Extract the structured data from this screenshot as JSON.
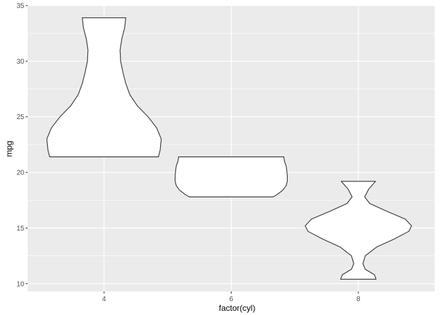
{
  "chart_data": {
    "type": "violin",
    "title": "",
    "xlabel": "factor(cyl)",
    "ylabel": "mpg",
    "ylim": [
      9.3,
      35
    ],
    "categories": [
      "4",
      "6",
      "8"
    ],
    "y_ticks": [
      10,
      15,
      20,
      25,
      30,
      35
    ],
    "grid": true,
    "panel_background": "#ebebeb",
    "grid_color": "#ffffff",
    "violin_fill": "#ffffff",
    "violin_stroke": "#333333",
    "violins": [
      {
        "category": "4",
        "min": 21.4,
        "max": 33.9,
        "density": [
          [
            21.4,
            0.95
          ],
          [
            22.0,
            0.98
          ],
          [
            23.0,
            1.0
          ],
          [
            24.0,
            0.92
          ],
          [
            25.0,
            0.77
          ],
          [
            26.0,
            0.58
          ],
          [
            27.0,
            0.45
          ],
          [
            28.0,
            0.38
          ],
          [
            29.0,
            0.33
          ],
          [
            30.0,
            0.29
          ],
          [
            31.0,
            0.28
          ],
          [
            32.0,
            0.31
          ],
          [
            33.0,
            0.36
          ],
          [
            33.9,
            0.38
          ]
        ]
      },
      {
        "category": "6",
        "min": 17.8,
        "max": 21.4,
        "density": [
          [
            17.8,
            0.73
          ],
          [
            18.0,
            0.8
          ],
          [
            18.4,
            0.9
          ],
          [
            18.8,
            0.96
          ],
          [
            19.2,
            0.98
          ],
          [
            19.7,
            0.98
          ],
          [
            20.2,
            0.97
          ],
          [
            20.6,
            0.96
          ],
          [
            21.0,
            0.93
          ],
          [
            21.4,
            0.92
          ]
        ]
      },
      {
        "category": "8",
        "min": 10.4,
        "max": 19.2,
        "density": [
          [
            10.4,
            0.31
          ],
          [
            10.8,
            0.28
          ],
          [
            11.3,
            0.12
          ],
          [
            11.8,
            0.08
          ],
          [
            12.5,
            0.12
          ],
          [
            13.3,
            0.32
          ],
          [
            14.0,
            0.62
          ],
          [
            14.7,
            0.88
          ],
          [
            15.2,
            0.93
          ],
          [
            15.8,
            0.82
          ],
          [
            16.5,
            0.5
          ],
          [
            17.2,
            0.2
          ],
          [
            17.8,
            0.11
          ],
          [
            18.5,
            0.18
          ],
          [
            19.2,
            0.3
          ]
        ]
      }
    ]
  }
}
